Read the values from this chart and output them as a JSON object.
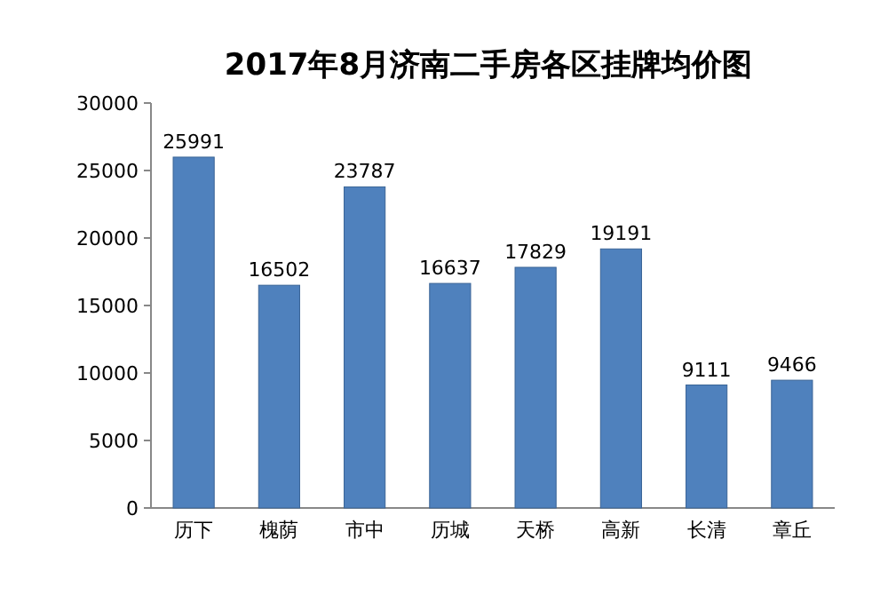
{
  "chart_data": {
    "type": "bar",
    "title": "2017年8月济南二手房各区挂牌均价图",
    "categories": [
      "历下",
      "槐荫",
      "市中",
      "历城",
      "天桥",
      "高新",
      "长清",
      "章丘"
    ],
    "values": [
      25991,
      16502,
      23787,
      16637,
      17829,
      19191,
      9111,
      9466
    ],
    "color": "#4f81bd",
    "ylim": [
      0,
      30000
    ],
    "yticks": [
      0,
      5000,
      10000,
      15000,
      20000,
      25000,
      30000
    ],
    "data_labels": true
  }
}
